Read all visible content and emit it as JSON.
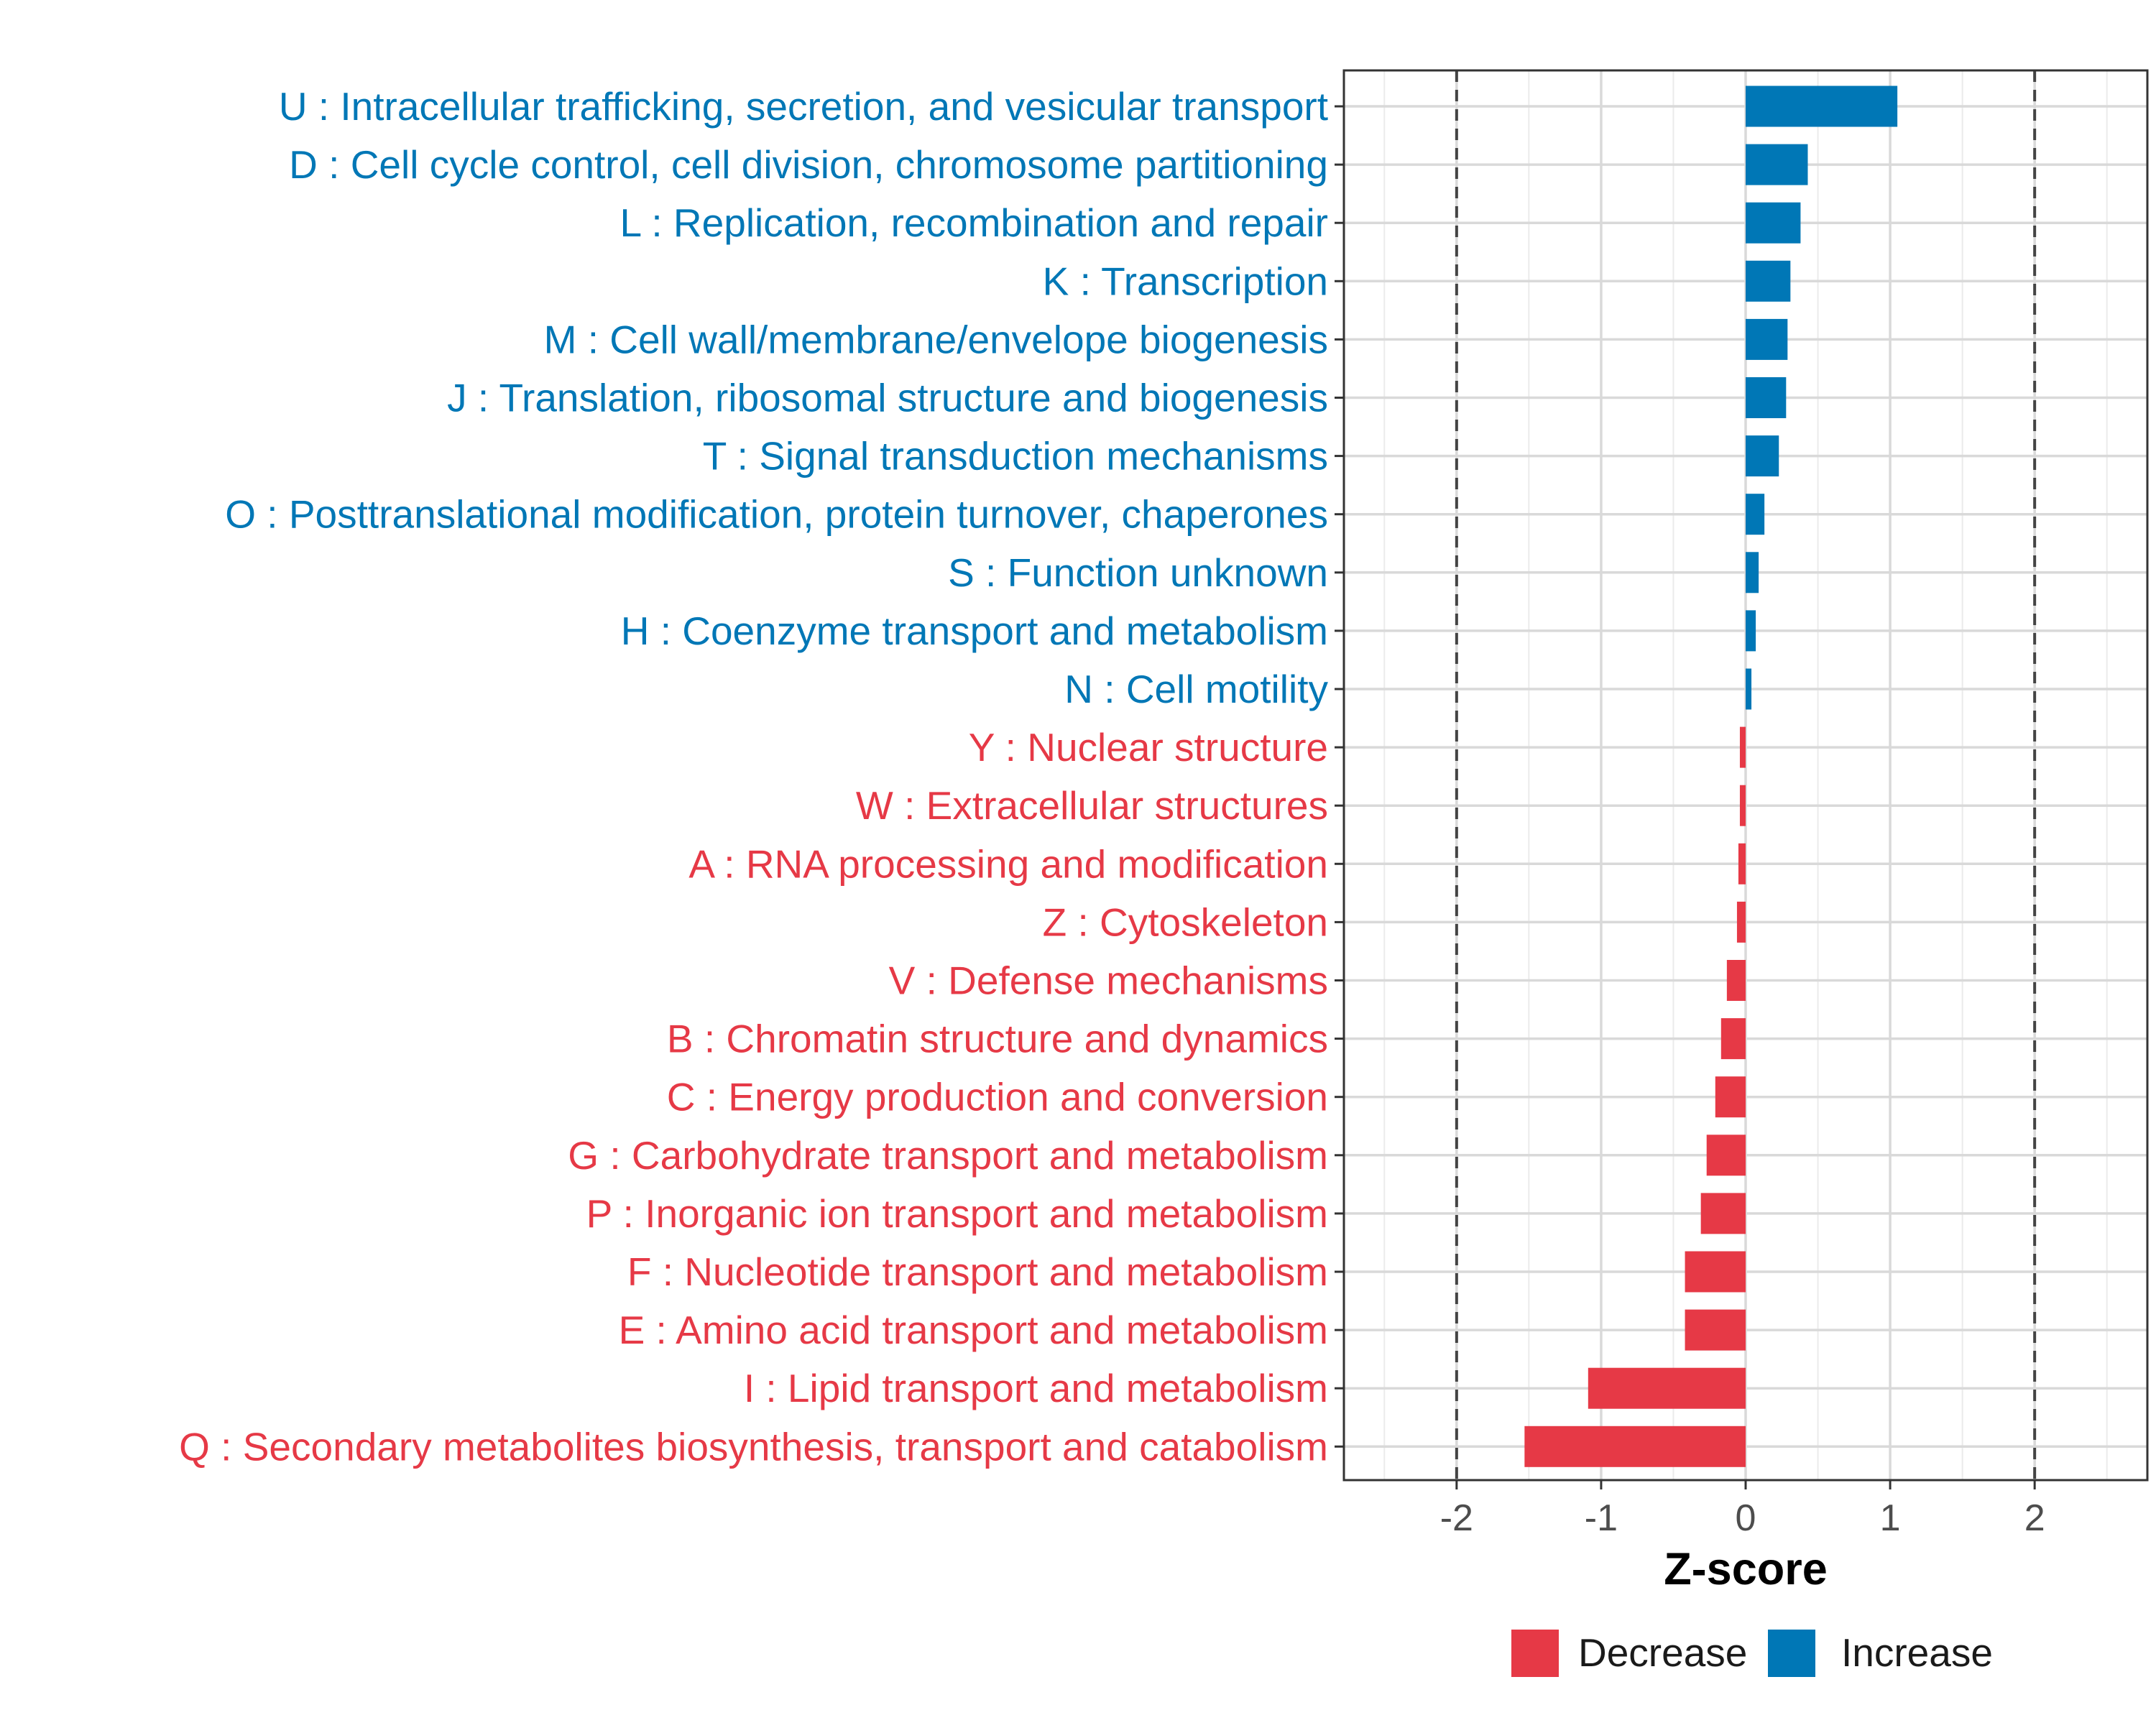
{
  "chart_data": {
    "type": "bar",
    "orientation": "horizontal",
    "title": "",
    "xlabel": "Z-score",
    "ylabel": "",
    "xlim": [
      -2.78,
      2.78
    ],
    "x_ticks": [
      -2,
      -1,
      0,
      1,
      2
    ],
    "x_tick_labels": [
      "-2",
      "-1",
      "0",
      "1",
      "2"
    ],
    "reference_lines": [
      -2,
      2
    ],
    "grid": true,
    "legend_position": "bottom",
    "colors": {
      "Decrease": "#E63946",
      "Increase": "#0077B6"
    },
    "categories": [
      "U : Intracellular trafficking, secretion, and vesicular transport",
      "D : Cell cycle control, cell division, chromosome partitioning",
      "L : Replication, recombination and repair",
      "K : Transcription",
      "M : Cell wall/membrane/envelope biogenesis",
      "J : Translation, ribosomal structure and biogenesis",
      "T : Signal transduction mechanisms",
      "O : Posttranslational modification, protein turnover, chaperones",
      "S : Function unknown",
      "H : Coenzyme transport and metabolism",
      "N : Cell motility",
      "Y : Nuclear structure",
      "W : Extracellular structures",
      "A : RNA processing and modification",
      "Z : Cytoskeleton",
      "V : Defense mechanisms",
      "B : Chromatin structure and dynamics",
      "C : Energy production and conversion",
      "G : Carbohydrate transport and metabolism",
      "P : Inorganic ion transport and metabolism",
      "F : Nucleotide transport and metabolism",
      "E : Amino acid transport and metabolism",
      "I : Lipid transport and metabolism",
      "Q : Secondary metabolites biosynthesis, transport and catabolism"
    ],
    "values": [
      1.05,
      0.43,
      0.38,
      0.31,
      0.29,
      0.28,
      0.23,
      0.13,
      0.09,
      0.07,
      0.04,
      -0.04,
      -0.04,
      -0.05,
      -0.06,
      -0.13,
      -0.17,
      -0.21,
      -0.27,
      -0.31,
      -0.42,
      -0.42,
      -1.09,
      -1.53
    ],
    "groups": [
      "Increase",
      "Increase",
      "Increase",
      "Increase",
      "Increase",
      "Increase",
      "Increase",
      "Increase",
      "Increase",
      "Increase",
      "Increase",
      "Decrease",
      "Decrease",
      "Decrease",
      "Decrease",
      "Decrease",
      "Decrease",
      "Decrease",
      "Decrease",
      "Decrease",
      "Decrease",
      "Decrease",
      "Decrease",
      "Decrease"
    ],
    "legend": [
      {
        "label": "Decrease",
        "color": "#E63946"
      },
      {
        "label": "Increase",
        "color": "#0077B6"
      }
    ]
  }
}
